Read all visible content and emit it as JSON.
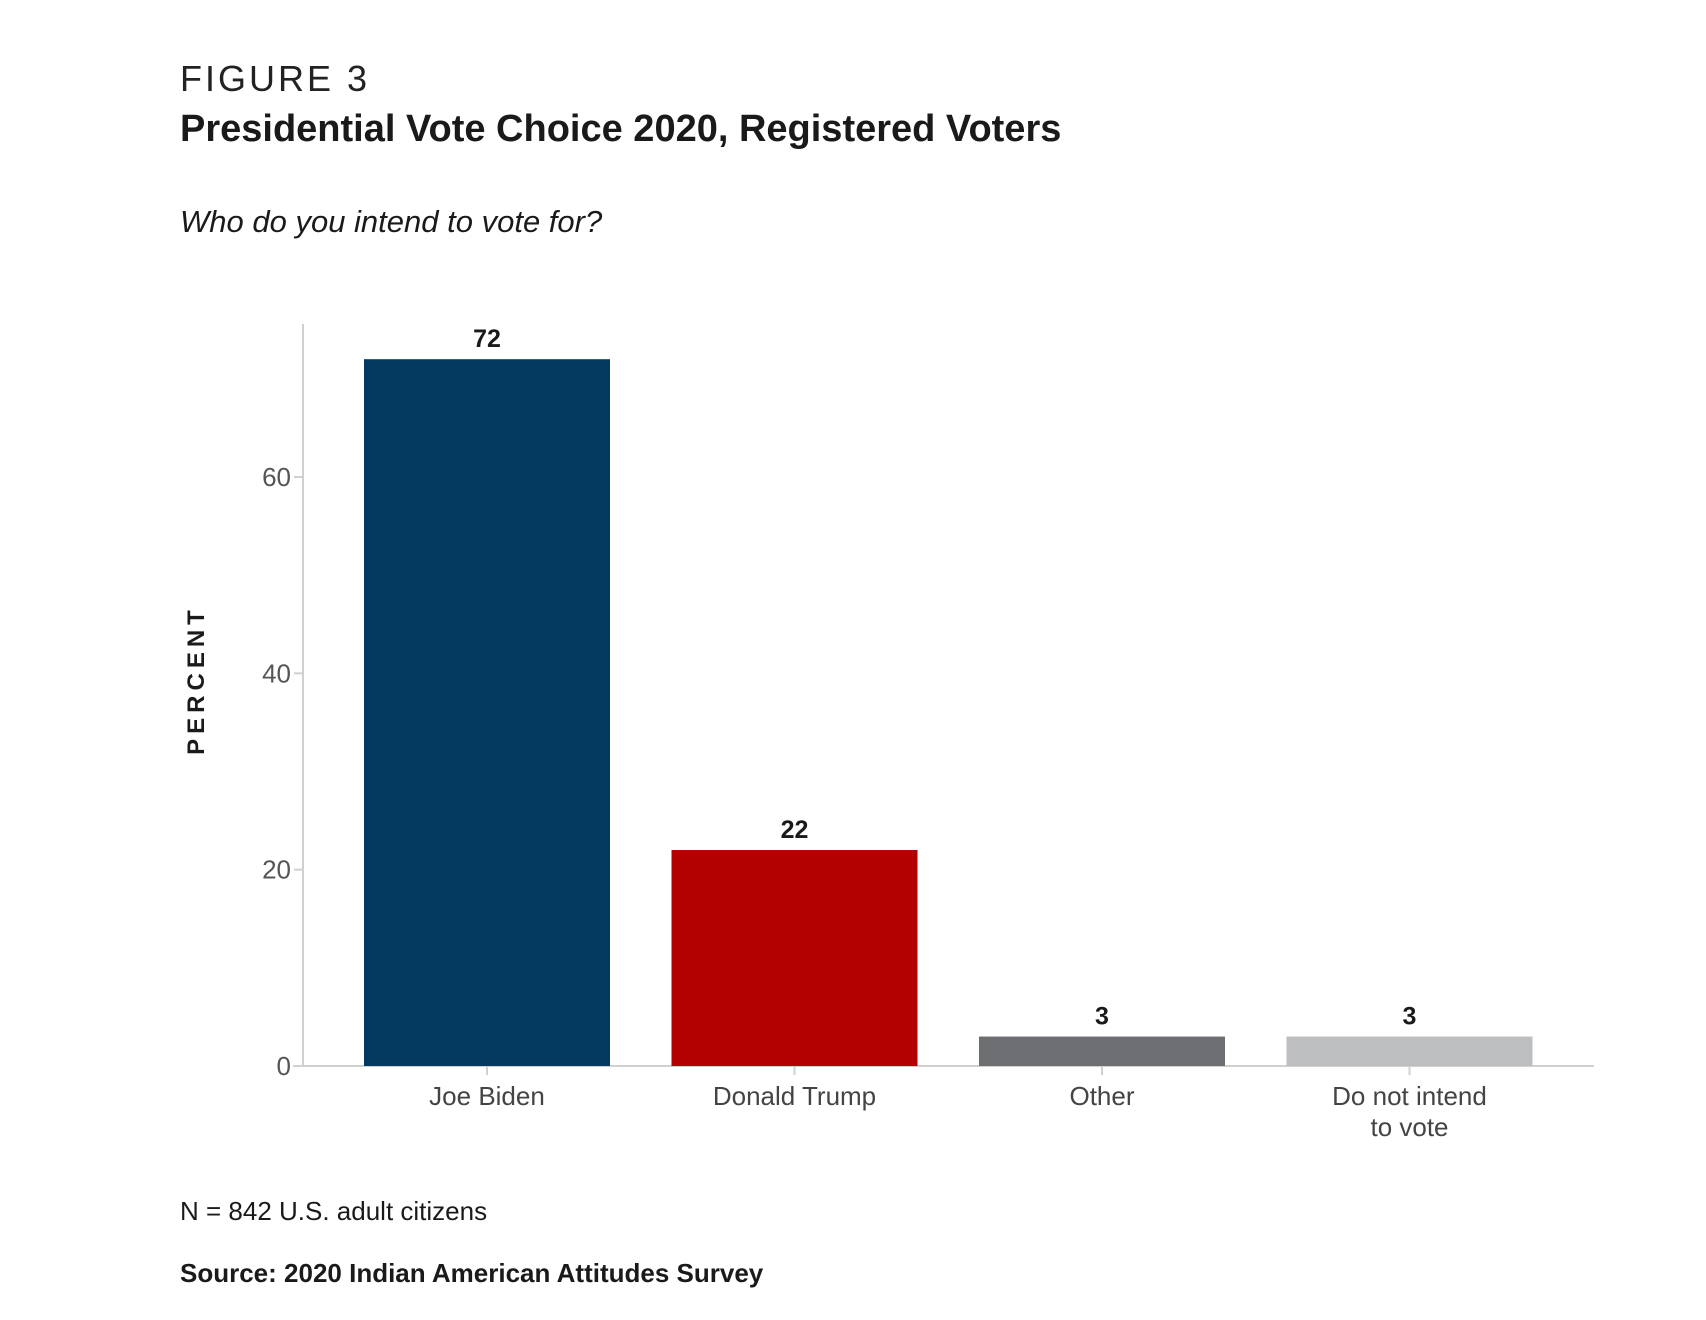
{
  "figure_label": "FIGURE 3",
  "title": "Presidential Vote Choice 2020, Registered Voters",
  "subtitle": "Who do you intend to vote for?",
  "note": "N = 842 U.S. adult citizens",
  "source": "Source: 2020 Indian American Attitudes Survey",
  "chart_data": {
    "type": "bar",
    "title": "Presidential Vote Choice 2020, Registered Voters",
    "xlabel": "",
    "ylabel": "PERCENT",
    "ylim": [
      0,
      75
    ],
    "yticks": [
      0,
      20,
      40,
      60
    ],
    "grid": false,
    "categories": [
      [
        "Joe Biden"
      ],
      [
        "Donald Trump"
      ],
      [
        "Other"
      ],
      [
        "Do not intend",
        "to vote"
      ]
    ],
    "values": [
      72,
      22,
      3,
      3
    ],
    "data_labels": [
      "72",
      "22",
      "3",
      "3"
    ],
    "colors": [
      "#03385f",
      "#b30000",
      "#6d6e71",
      "#bdbec0"
    ]
  }
}
